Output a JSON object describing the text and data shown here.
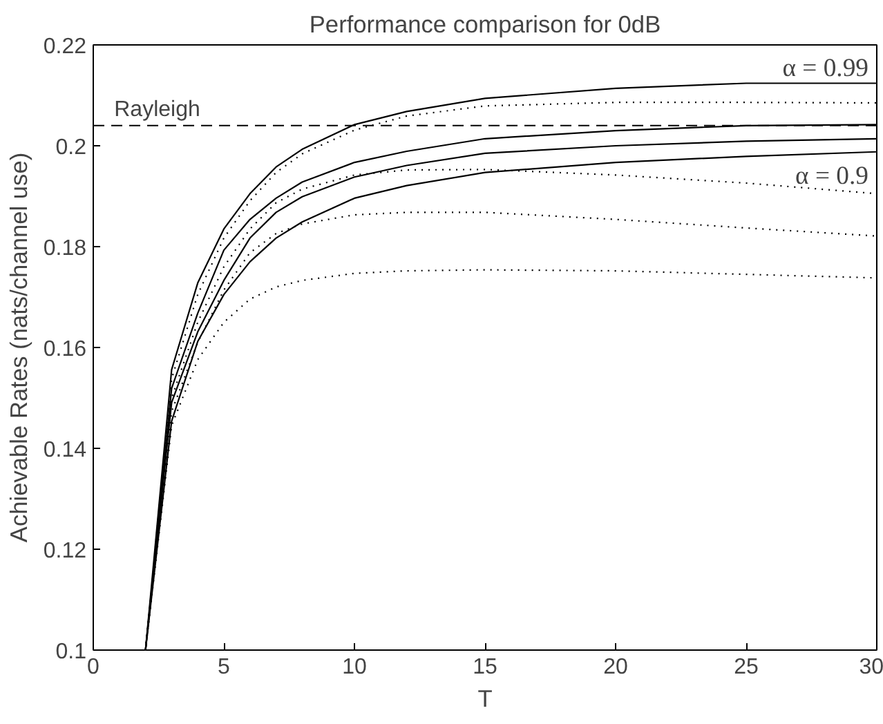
{
  "chart_data": {
    "type": "line",
    "title": "Performance comparison for 0dB",
    "xlabel": "T",
    "ylabel": "Achievable Rates (nats/channel use)",
    "xlim": [
      0,
      30
    ],
    "ylim": [
      0.1,
      0.22
    ],
    "xticks": [
      0,
      5,
      10,
      15,
      20,
      25,
      30
    ],
    "yticks": [
      0.1,
      0.12,
      0.14,
      0.16,
      0.18,
      0.2,
      0.22
    ],
    "x": [
      2,
      3,
      4,
      5,
      6,
      7,
      8,
      10,
      12,
      15,
      20,
      25,
      30
    ],
    "grid": false,
    "marker": "none",
    "series": [
      {
        "color": "#000000",
        "line_style": "solid",
        "values": [
          0.1,
          0.1556,
          0.1728,
          0.1835,
          0.1905,
          0.1958,
          0.1993,
          0.2042,
          0.2068,
          0.2094,
          0.2114,
          0.2124,
          0.2124
        ]
      },
      {
        "color": "#000000",
        "line_style": "solid",
        "values": [
          0.1,
          0.1519,
          0.1668,
          0.1793,
          0.1854,
          0.1896,
          0.1928,
          0.1967,
          0.1989,
          0.2014,
          0.203,
          0.204,
          0.2042
        ]
      },
      {
        "color": "#000000",
        "line_style": "solid",
        "values": [
          0.1,
          0.1491,
          0.1631,
          0.1733,
          0.1817,
          0.1868,
          0.1899,
          0.1938,
          0.1961,
          0.1985,
          0.2,
          0.2009,
          0.2014
        ]
      },
      {
        "color": "#000000",
        "line_style": "solid",
        "values": [
          0.1,
          0.1454,
          0.1612,
          0.1705,
          0.177,
          0.1817,
          0.1849,
          0.1896,
          0.1921,
          0.1947,
          0.1967,
          0.1979,
          0.1988
        ]
      },
      {
        "color": "#000000",
        "line_style": "dotted",
        "values": [
          0.1,
          0.1538,
          0.1705,
          0.1817,
          0.1891,
          0.1947,
          0.1984,
          0.2031,
          0.2059,
          0.2079,
          0.2086,
          0.2086,
          0.2085
        ]
      },
      {
        "color": "#000000",
        "line_style": "dotted",
        "values": [
          0.1,
          0.15,
          0.165,
          0.176,
          0.1835,
          0.1887,
          0.1914,
          0.1942,
          0.1952,
          0.1953,
          0.1942,
          0.1926,
          0.1905
        ]
      },
      {
        "color": "#000000",
        "line_style": "dotted",
        "values": [
          0.1,
          0.1473,
          0.161,
          0.1714,
          0.1788,
          0.1826,
          0.1845,
          0.1863,
          0.1868,
          0.1868,
          0.1854,
          0.1837,
          0.1821
        ]
      },
      {
        "color": "#000000",
        "line_style": "dotted",
        "values": [
          0.1,
          0.1445,
          0.1576,
          0.165,
          0.1696,
          0.172,
          0.1733,
          0.1747,
          0.1752,
          0.1754,
          0.1752,
          0.1745,
          0.1738
        ]
      }
    ],
    "ref_lines": [
      {
        "axis": "y",
        "value": 0.204,
        "label": "Rayleigh",
        "line_style": "dashed",
        "color": "#000000"
      }
    ],
    "annotations": [
      "α = 0.99",
      "α = 0.9"
    ]
  }
}
